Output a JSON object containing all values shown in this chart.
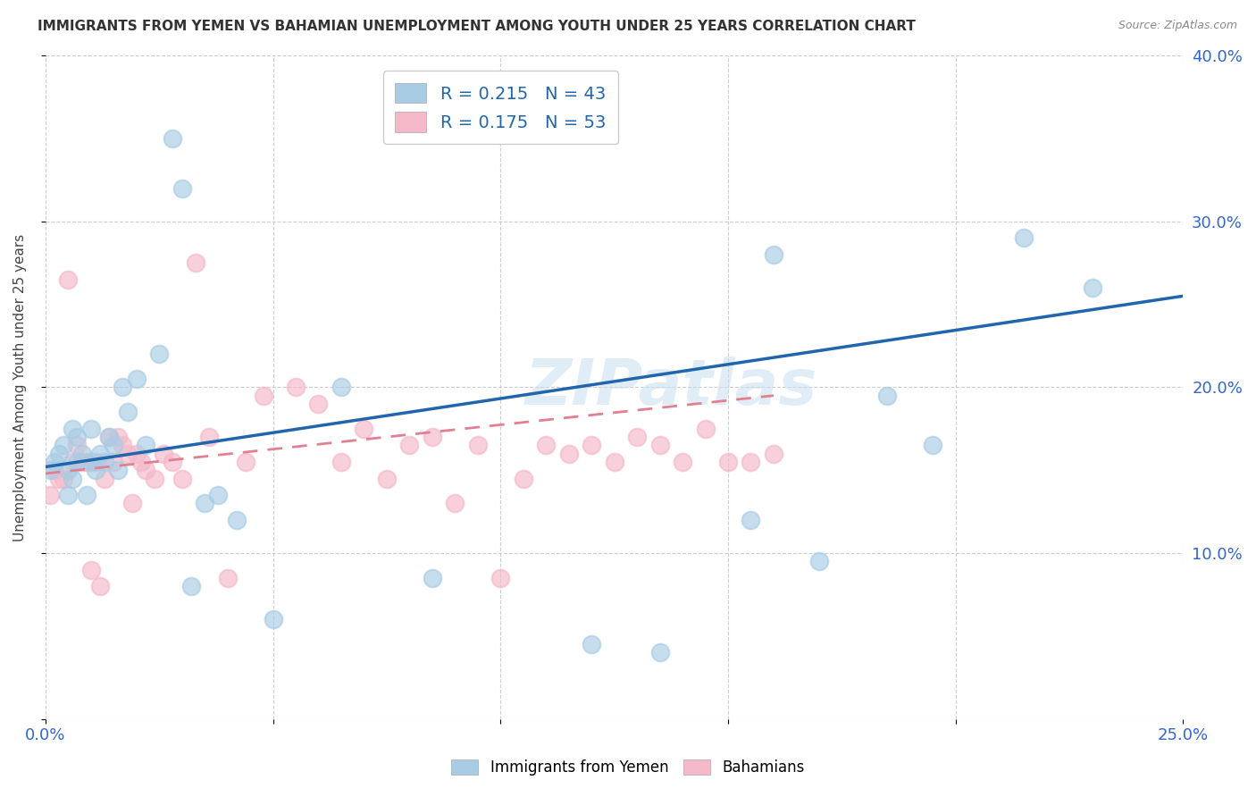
{
  "title": "IMMIGRANTS FROM YEMEN VS BAHAMIAN UNEMPLOYMENT AMONG YOUTH UNDER 25 YEARS CORRELATION CHART",
  "source": "Source: ZipAtlas.com",
  "ylabel": "Unemployment Among Youth under 25 years",
  "legend_label1": "Immigrants from Yemen",
  "legend_label2": "Bahamians",
  "r1": 0.215,
  "n1": 43,
  "r2": 0.175,
  "n2": 53,
  "xlim": [
    0.0,
    0.25
  ],
  "ylim": [
    0.0,
    0.4
  ],
  "color_blue": "#a8cce4",
  "color_pink": "#f4b8c8",
  "color_blue_line": "#2166ac",
  "color_pink_line": "#f4b8c8",
  "watermark": "ZIPatlas",
  "blue_scatter_x": [
    0.001,
    0.002,
    0.003,
    0.004,
    0.005,
    0.005,
    0.006,
    0.006,
    0.007,
    0.007,
    0.008,
    0.009,
    0.01,
    0.01,
    0.011,
    0.012,
    0.013,
    0.014,
    0.015,
    0.016,
    0.017,
    0.018,
    0.02,
    0.022,
    0.025,
    0.028,
    0.03,
    0.032,
    0.035,
    0.038,
    0.042,
    0.05,
    0.065,
    0.085,
    0.12,
    0.135,
    0.155,
    0.16,
    0.17,
    0.185,
    0.195,
    0.215,
    0.23
  ],
  "blue_scatter_y": [
    0.15,
    0.155,
    0.16,
    0.165,
    0.135,
    0.15,
    0.145,
    0.175,
    0.155,
    0.17,
    0.16,
    0.135,
    0.155,
    0.175,
    0.15,
    0.16,
    0.155,
    0.17,
    0.165,
    0.15,
    0.2,
    0.185,
    0.205,
    0.165,
    0.22,
    0.35,
    0.32,
    0.08,
    0.13,
    0.135,
    0.12,
    0.06,
    0.2,
    0.085,
    0.045,
    0.04,
    0.12,
    0.28,
    0.095,
    0.195,
    0.165,
    0.29,
    0.26
  ],
  "pink_scatter_x": [
    0.001,
    0.002,
    0.003,
    0.004,
    0.005,
    0.006,
    0.007,
    0.008,
    0.009,
    0.01,
    0.011,
    0.012,
    0.013,
    0.014,
    0.015,
    0.016,
    0.017,
    0.018,
    0.019,
    0.02,
    0.021,
    0.022,
    0.024,
    0.026,
    0.028,
    0.03,
    0.033,
    0.036,
    0.04,
    0.044,
    0.048,
    0.055,
    0.06,
    0.065,
    0.07,
    0.075,
    0.08,
    0.085,
    0.09,
    0.095,
    0.1,
    0.105,
    0.11,
    0.115,
    0.12,
    0.125,
    0.13,
    0.135,
    0.14,
    0.145,
    0.15,
    0.155,
    0.16
  ],
  "pink_scatter_y": [
    0.135,
    0.15,
    0.145,
    0.145,
    0.265,
    0.155,
    0.165,
    0.155,
    0.155,
    0.09,
    0.155,
    0.08,
    0.145,
    0.17,
    0.155,
    0.17,
    0.165,
    0.16,
    0.13,
    0.16,
    0.155,
    0.15,
    0.145,
    0.16,
    0.155,
    0.145,
    0.275,
    0.17,
    0.085,
    0.155,
    0.195,
    0.2,
    0.19,
    0.155,
    0.175,
    0.145,
    0.165,
    0.17,
    0.13,
    0.165,
    0.085,
    0.145,
    0.165,
    0.16,
    0.165,
    0.155,
    0.17,
    0.165,
    0.155,
    0.175,
    0.155,
    0.155,
    0.16
  ],
  "blue_trend_x0": 0.0,
  "blue_trend_y0": 0.152,
  "blue_trend_x1": 0.25,
  "blue_trend_y1": 0.255,
  "pink_trend_x0": 0.0,
  "pink_trend_y0": 0.148,
  "pink_trend_x1": 0.16,
  "pink_trend_y1": 0.195
}
